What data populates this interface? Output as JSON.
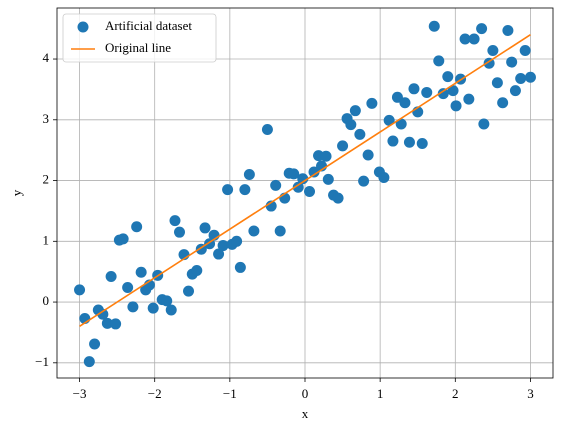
{
  "chart_data": {
    "type": "scatter",
    "xlabel": "x",
    "ylabel": "y",
    "xlim": [
      -3.3,
      3.3
    ],
    "ylim": [
      -1.25,
      4.84
    ],
    "xticks": [
      {
        "value": -3,
        "label": "−3"
      },
      {
        "value": -2,
        "label": "−2"
      },
      {
        "value": -1,
        "label": "−1"
      },
      0,
      1,
      2,
      3
    ],
    "yticks": [
      {
        "value": -1,
        "label": "−1"
      },
      0,
      1,
      2,
      3,
      4
    ],
    "grid": true,
    "legend": "upper left",
    "series": [
      {
        "name": "Artificial dataset",
        "type": "scatter",
        "color": "#1f77b4",
        "x": [
          -3.0,
          -2.93,
          -2.87,
          -2.8,
          -2.75,
          -2.69,
          -2.63,
          -2.58,
          -2.52,
          -2.47,
          -2.42,
          -2.36,
          -2.29,
          -2.24,
          -2.18,
          -2.12,
          -2.07,
          -2.02,
          -1.96,
          -1.9,
          -1.84,
          -1.78,
          -1.73,
          -1.67,
          -1.61,
          -1.55,
          -1.5,
          -1.44,
          -1.38,
          -1.33,
          -1.27,
          -1.21,
          -1.15,
          -1.09,
          -1.03,
          -0.97,
          -0.91,
          -0.86,
          -0.8,
          -0.74,
          -0.68,
          -0.5,
          -0.45,
          -0.39,
          -0.33,
          -0.27,
          -0.21,
          -0.15,
          -0.09,
          -0.03,
          0.06,
          0.12,
          0.18,
          0.22,
          0.28,
          0.31,
          0.38,
          0.44,
          0.5,
          0.56,
          0.61,
          0.67,
          0.73,
          0.78,
          0.84,
          0.89,
          0.99,
          1.05,
          1.12,
          1.17,
          1.23,
          1.28,
          1.33,
          1.39,
          1.45,
          1.5,
          1.56,
          1.62,
          1.72,
          1.78,
          1.84,
          1.9,
          1.97,
          2.01,
          2.07,
          2.13,
          2.18,
          2.25,
          2.35,
          2.38,
          2.45,
          2.5,
          2.56,
          2.63,
          2.7,
          2.75,
          2.8,
          2.87,
          2.93,
          3.0
        ],
        "values": [
          0.2,
          -0.27,
          -0.98,
          -0.69,
          -0.13,
          -0.2,
          -0.35,
          0.42,
          -0.36,
          1.02,
          1.04,
          0.24,
          -0.08,
          1.24,
          0.49,
          0.2,
          0.28,
          -0.1,
          0.44,
          0.04,
          0.02,
          -0.13,
          1.34,
          1.15,
          0.78,
          0.18,
          0.46,
          0.52,
          0.87,
          1.22,
          0.96,
          1.1,
          0.79,
          0.93,
          1.85,
          0.95,
          1.0,
          0.57,
          1.85,
          2.1,
          1.17,
          2.84,
          1.58,
          1.92,
          1.17,
          1.71,
          2.12,
          2.11,
          1.89,
          2.03,
          1.82,
          2.14,
          2.41,
          2.24,
          2.4,
          2.02,
          1.76,
          1.71,
          2.57,
          3.02,
          2.92,
          3.15,
          2.76,
          1.99,
          2.42,
          3.27,
          2.14,
          2.05,
          2.99,
          2.65,
          3.37,
          2.93,
          3.28,
          2.63,
          3.51,
          3.13,
          2.61,
          3.45,
          4.54,
          3.97,
          3.43,
          3.71,
          3.48,
          3.23,
          3.67,
          4.33,
          3.34,
          4.33,
          4.5,
          2.93,
          3.93,
          4.14,
          3.61,
          3.28,
          4.47,
          3.95,
          3.48,
          3.68,
          4.14,
          3.7
        ]
      },
      {
        "name": "Original line",
        "type": "line",
        "color": "#ff7f0e",
        "x": [
          -3,
          3
        ],
        "values": [
          -0.4,
          4.4
        ]
      }
    ]
  }
}
